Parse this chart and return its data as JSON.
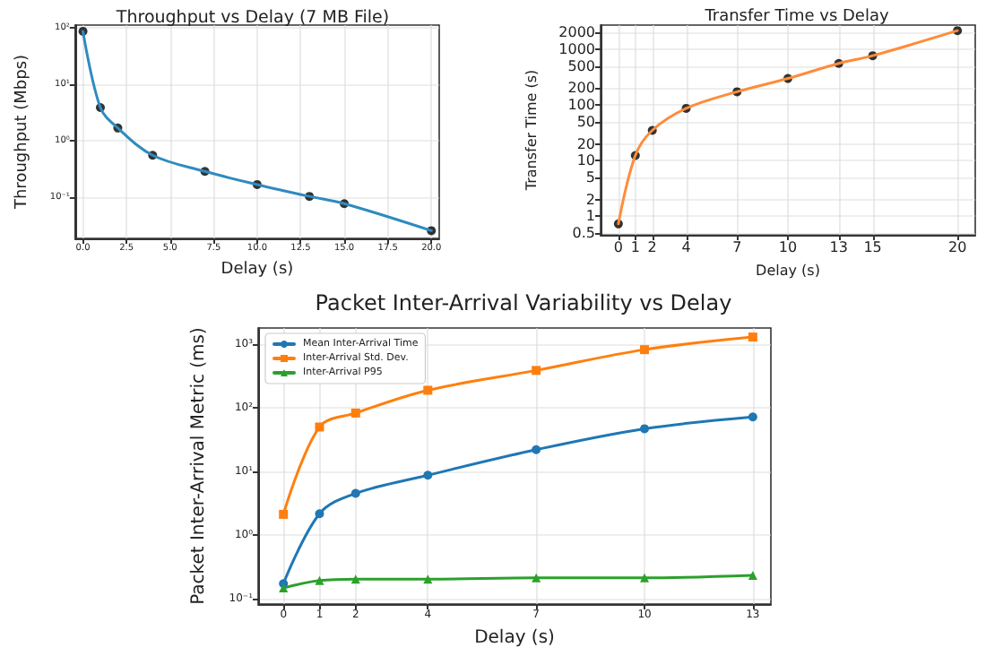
{
  "chart_data": [
    {
      "type": "line",
      "title": "Throughput vs Delay (7 MB File)",
      "xlabel": "Delay (s)",
      "ylabel": "Throughput (Mbps)",
      "x": [
        0,
        1,
        2,
        4,
        7,
        10,
        13,
        15,
        20
      ],
      "series": [
        {
          "color": "#2e8bc0",
          "marker": "none",
          "values": [
            87,
            3.9,
            1.7,
            0.56,
            0.29,
            0.17,
            0.105,
            0.078,
            0.026
          ]
        },
        {
          "type": "scatter",
          "color": "#000000",
          "marker": "circle",
          "values": [
            87,
            3.9,
            1.7,
            0.56,
            0.29,
            0.17,
            0.105,
            0.078,
            0.026
          ]
        }
      ],
      "xlim": [
        -0.45,
        20.45
      ],
      "xticks": [
        {
          "value": 0,
          "label": "0.0"
        },
        {
          "value": 2.5,
          "label": "2.5"
        },
        {
          "value": 5,
          "label": "5.0"
        },
        {
          "value": 7.5,
          "label": "7.5"
        },
        {
          "value": 10,
          "label": "10.0"
        },
        {
          "value": 12.5,
          "label": "12.5"
        },
        {
          "value": 15,
          "label": "15.0"
        },
        {
          "value": 17.5,
          "label": "17.5"
        },
        {
          "value": 20,
          "label": "20.0"
        }
      ],
      "ylim": [
        0.019,
        112
      ],
      "yticks": [
        {
          "value": 0.1,
          "label": "10⁻¹"
        },
        {
          "value": 1,
          "label": "10⁰"
        },
        {
          "value": 10,
          "label": "10¹"
        },
        {
          "value": 100,
          "label": "10²"
        }
      ],
      "log": "y",
      "grid": true
    },
    {
      "type": "line",
      "title": "Transfer Time vs Delay",
      "xlabel": "Delay (s)",
      "ylabel": "Transfer Time (s)",
      "x": [
        0,
        1,
        2,
        4,
        7,
        10,
        13,
        15,
        20
      ],
      "series": [
        {
          "color": "#ff8c3a",
          "marker": "none",
          "values": [
            0.73,
            12.4,
            35,
            87,
            173,
            300,
            560,
            770,
            2170
          ]
        },
        {
          "type": "scatter",
          "color": "#000000",
          "marker": "circle",
          "values": [
            0.73,
            12.4,
            35,
            87,
            173,
            300,
            560,
            770,
            2170
          ]
        }
      ],
      "xlim": [
        -1.05,
        21.05
      ],
      "xticks": [
        0,
        1,
        2,
        4,
        7,
        10,
        13,
        15,
        20
      ],
      "ylim": [
        0.465,
        2730
      ],
      "yticks": [
        0.5,
        1,
        2,
        5,
        10,
        20,
        50,
        100,
        200,
        500,
        1000,
        2000
      ],
      "log": "y",
      "grid": true
    },
    {
      "type": "line",
      "title": "Packet Inter-Arrival Variability vs Delay",
      "xlabel": "Delay (s)",
      "ylabel": "Packet Inter-Arrival Metric (ms)",
      "x": [
        0,
        1,
        2,
        4,
        7,
        10,
        13
      ],
      "series": [
        {
          "name": "Mean Inter-Arrival Time",
          "color": "#1f77b4",
          "marker": "circle",
          "values": [
            0.17,
            2.15,
            4.5,
            8.7,
            22,
            47,
            72
          ]
        },
        {
          "name": "Inter-Arrival Std. Dev.",
          "color": "#ff7f0e",
          "marker": "square",
          "values": [
            2.1,
            50,
            83,
            190,
            390,
            830,
            1310
          ]
        },
        {
          "name": "Inter-Arrival P95",
          "color": "#2ca02c",
          "marker": "triangle",
          "values": [
            0.145,
            0.19,
            0.2,
            0.2,
            0.21,
            0.21,
            0.23
          ]
        }
      ],
      "xlim": [
        -0.7,
        13.5
      ],
      "xticks": [
        0,
        1,
        2,
        4,
        7,
        10,
        13
      ],
      "ylim": [
        0.081,
        1820
      ],
      "yticks": [
        {
          "value": 0.1,
          "label": "10⁻¹"
        },
        {
          "value": 1,
          "label": "10⁰"
        },
        {
          "value": 10,
          "label": "10¹"
        },
        {
          "value": 100,
          "label": "10²"
        },
        {
          "value": 1000,
          "label": "10³"
        }
      ],
      "log": "y",
      "grid": true,
      "legend": "top left"
    }
  ]
}
